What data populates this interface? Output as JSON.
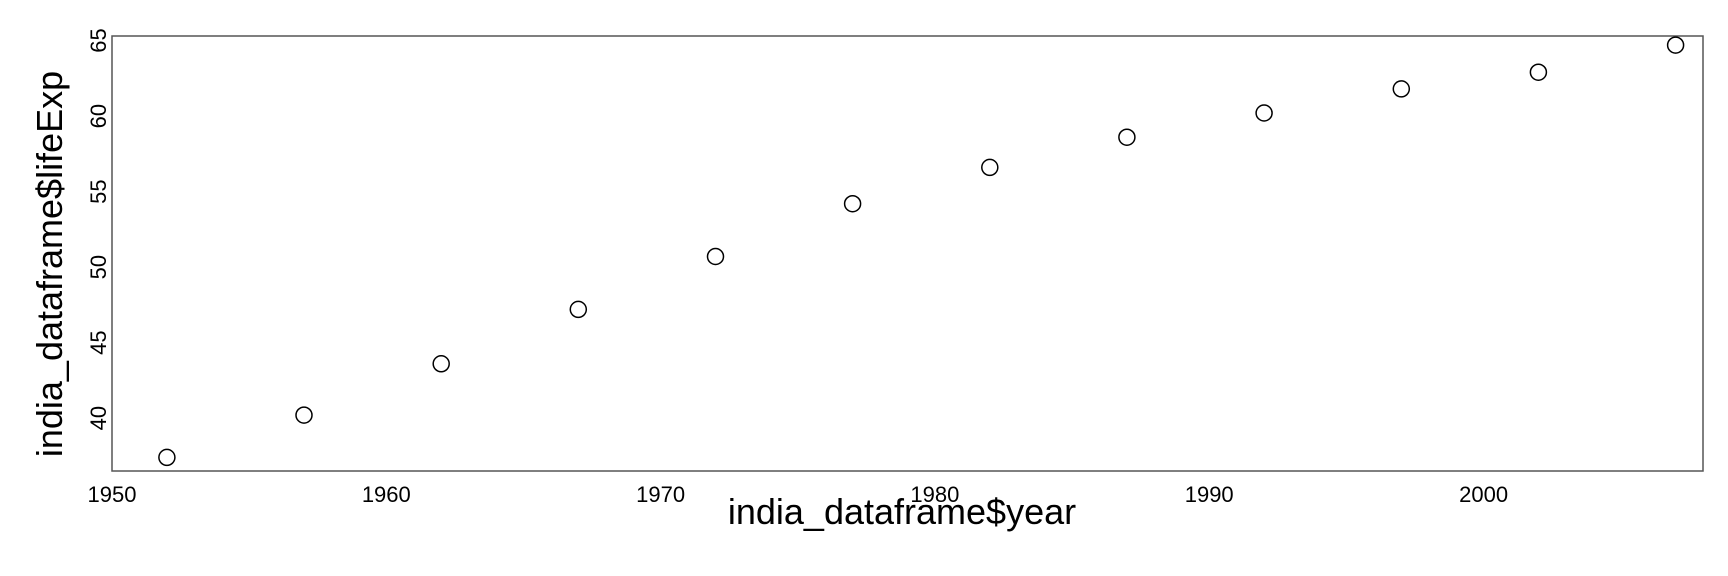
{
  "chart_data": {
    "type": "scatter",
    "title": "",
    "xlabel": "india_dataframe$year",
    "ylabel": "india_dataframe$lifeExp",
    "xlim": [
      1950,
      2008
    ],
    "ylim": [
      36.5,
      65.3
    ],
    "x_ticks": [
      1950,
      1960,
      1970,
      1980,
      1990,
      2000
    ],
    "y_ticks": [
      40,
      45,
      50,
      55,
      60,
      65
    ],
    "marker": "open-circle",
    "grid": false,
    "legend": "none",
    "colors": {
      "point_stroke": "#000000",
      "point_fill": "#ffffff",
      "frame": "#555555",
      "text": "#000000",
      "background": "#ffffff"
    },
    "points": [
      {
        "x": 1952,
        "y": 37.4
      },
      {
        "x": 1957,
        "y": 40.2
      },
      {
        "x": 1962,
        "y": 43.6
      },
      {
        "x": 1967,
        "y": 47.2
      },
      {
        "x": 1972,
        "y": 50.7
      },
      {
        "x": 1977,
        "y": 54.2
      },
      {
        "x": 1982,
        "y": 56.6
      },
      {
        "x": 1987,
        "y": 58.6
      },
      {
        "x": 1992,
        "y": 60.2
      },
      {
        "x": 1997,
        "y": 61.8
      },
      {
        "x": 2002,
        "y": 62.9
      },
      {
        "x": 2007,
        "y": 64.7
      }
    ]
  }
}
